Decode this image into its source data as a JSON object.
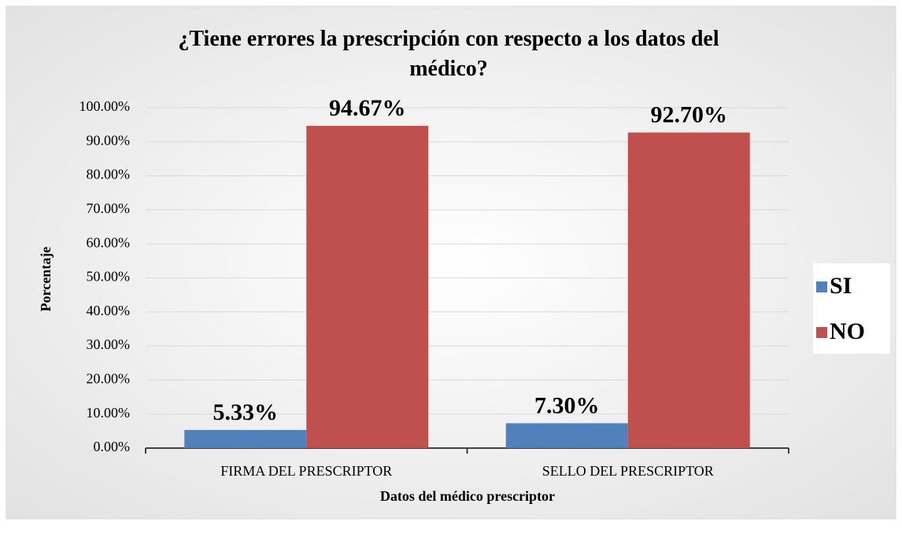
{
  "chart_data": {
    "type": "bar",
    "title": "¿Tiene errores la prescripción con respecto a los datos del médico?",
    "x_label": "Datos del médico prescriptor",
    "y_label": "Porcentaje",
    "categories": [
      "FIRMA DEL PRESCRIPTOR",
      "SELLO DEL PRESCRIPTOR"
    ],
    "series": [
      {
        "name": "SI",
        "color": "#4f81bd",
        "values": [
          5.33,
          7.3
        ],
        "value_labels": [
          "5.33%",
          "7.30%"
        ]
      },
      {
        "name": "NO",
        "color": "#c0504d",
        "values": [
          94.67,
          92.7
        ],
        "value_labels": [
          "94.67%",
          "92.70%"
        ]
      }
    ],
    "ylim": [
      0,
      100
    ],
    "yticks": [
      {
        "value": 0,
        "label": "0.00%"
      },
      {
        "value": 10,
        "label": "10.00%"
      },
      {
        "value": 20,
        "label": "20.00%"
      },
      {
        "value": 30,
        "label": "30.00%"
      },
      {
        "value": 40,
        "label": "40.00%"
      },
      {
        "value": 50,
        "label": "50.00%"
      },
      {
        "value": 60,
        "label": "60.00%"
      },
      {
        "value": 70,
        "label": "70.00%"
      },
      {
        "value": 80,
        "label": "80.00%"
      },
      {
        "value": 90,
        "label": "90.00%"
      },
      {
        "value": 100,
        "label": "100.00%"
      }
    ],
    "grid": true,
    "legend": "right"
  }
}
